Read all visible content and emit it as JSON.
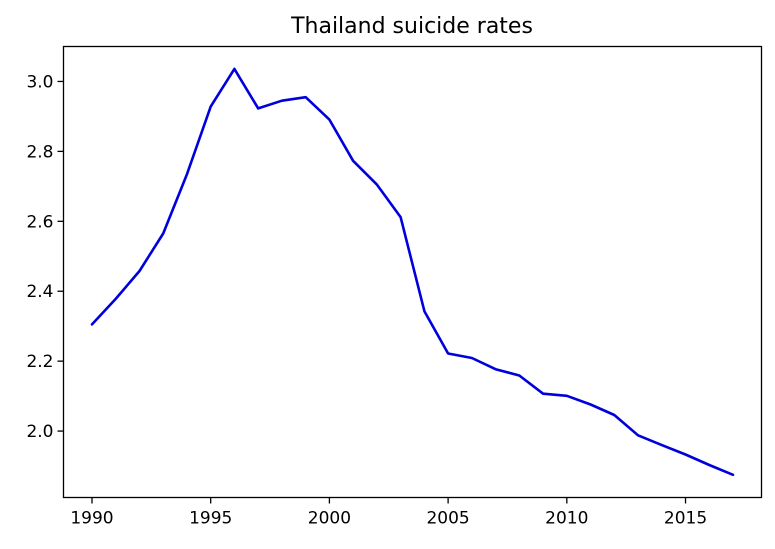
{
  "chart_data": {
    "type": "line",
    "title": "Thailand suicide rates",
    "xlabel": "",
    "ylabel": "",
    "xlim": [
      1988.8,
      2018.2
    ],
    "ylim": [
      1.81,
      3.1
    ],
    "xticks": [
      1990,
      1995,
      2000,
      2005,
      2010,
      2015
    ],
    "yticks": [
      2.0,
      2.2,
      2.4,
      2.6,
      2.8,
      3.0
    ],
    "xtick_labels": [
      "1990",
      "1995",
      "2000",
      "2005",
      "2010",
      "2015"
    ],
    "ytick_labels": [
      "2.0",
      "2.2",
      "2.4",
      "2.6",
      "2.8",
      "3.0"
    ],
    "grid": false,
    "legend": "none",
    "series": [
      {
        "color": "#0000dd",
        "x": [
          1990,
          1991,
          1992,
          1993,
          1994,
          1995,
          1996,
          1997,
          1998,
          1999,
          2000,
          2001,
          2002,
          2003,
          2004,
          2005,
          2006,
          2007,
          2008,
          2009,
          2010,
          2011,
          2012,
          2013,
          2014,
          2015,
          2016,
          2017
        ],
        "y": [
          2.305,
          2.378,
          2.458,
          2.565,
          2.735,
          2.928,
          3.036,
          2.923,
          2.945,
          2.955,
          2.891,
          2.773,
          2.705,
          2.612,
          2.343,
          2.222,
          2.209,
          2.177,
          2.159,
          2.107,
          2.101,
          2.076,
          2.046,
          1.988,
          1.96,
          1.933,
          1.903,
          1.875
        ]
      }
    ]
  }
}
